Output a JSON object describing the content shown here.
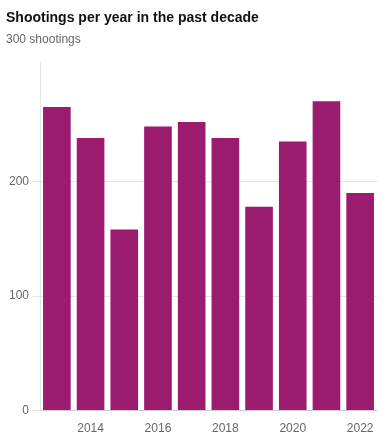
{
  "chart_data": {
    "type": "bar",
    "title": "Shootings per year in the past decade",
    "subtitle": "300 shootings",
    "categories": [
      null,
      "2014",
      null,
      "2016",
      null,
      "2018",
      null,
      "2020",
      null,
      "2022"
    ],
    "values": [
      265,
      238,
      158,
      248,
      252,
      238,
      178,
      235,
      270,
      190
    ],
    "color": "#9B1B6E",
    "ylim": [
      0,
      305
    ],
    "yticks": [
      0,
      100,
      200
    ],
    "grid": true
  }
}
